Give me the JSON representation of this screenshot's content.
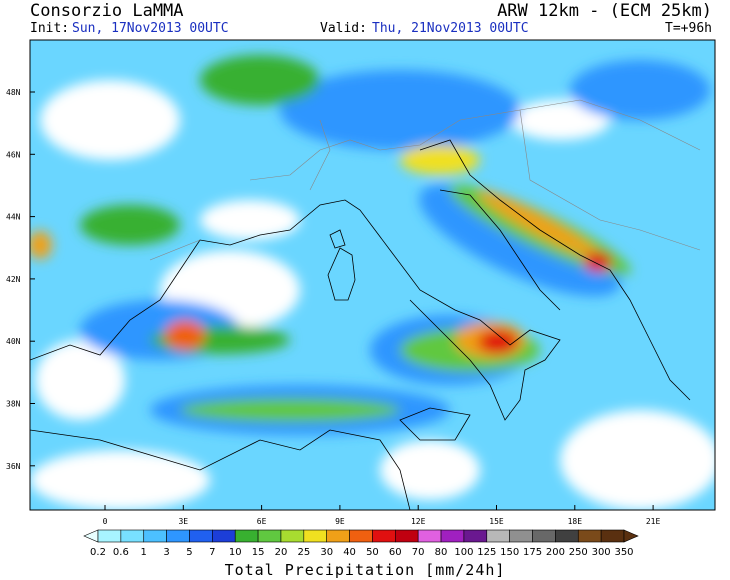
{
  "header": {
    "title": "Consorzio LaMMA",
    "model": "ARW 12km  - (ECM 25km)",
    "init_label": "Init:",
    "init_time": "Sun, 17Nov2013 00UTC",
    "valid_label": "Valid:",
    "valid_time": "Thu, 21Nov2013 00UTC",
    "lead_time": "T=+96h"
  },
  "map": {
    "lat_labels": [
      "48N",
      "46N",
      "44N",
      "42N",
      "40N",
      "38N",
      "36N"
    ],
    "lon_labels": [
      "0",
      "3E",
      "6E",
      "9E",
      "12E",
      "15E",
      "18E",
      "21E"
    ]
  },
  "colorbar": {
    "labels": [
      "0.2",
      "0.6",
      "1",
      "3",
      "5",
      "7",
      "10",
      "15",
      "20",
      "25",
      "30",
      "40",
      "50",
      "60",
      "70",
      "80",
      "100",
      "125",
      "150",
      "175",
      "200",
      "250",
      "300",
      "350"
    ],
    "colors": [
      "#e8ffff",
      "#a8f4ff",
      "#78e0ff",
      "#4cc0ff",
      "#2e96ff",
      "#2060f0",
      "#1c3ed8",
      "#38b030",
      "#60c840",
      "#a8dc30",
      "#f0e020",
      "#f0a018",
      "#f06010",
      "#e01010",
      "#c00010",
      "#e060e0",
      "#a020c0",
      "#6a1890",
      "#b8b8b8",
      "#909090",
      "#686868",
      "#404040",
      "#7a4a1a",
      "#5a3010"
    ],
    "title": "Total Precipitation [mm/24h]"
  }
}
